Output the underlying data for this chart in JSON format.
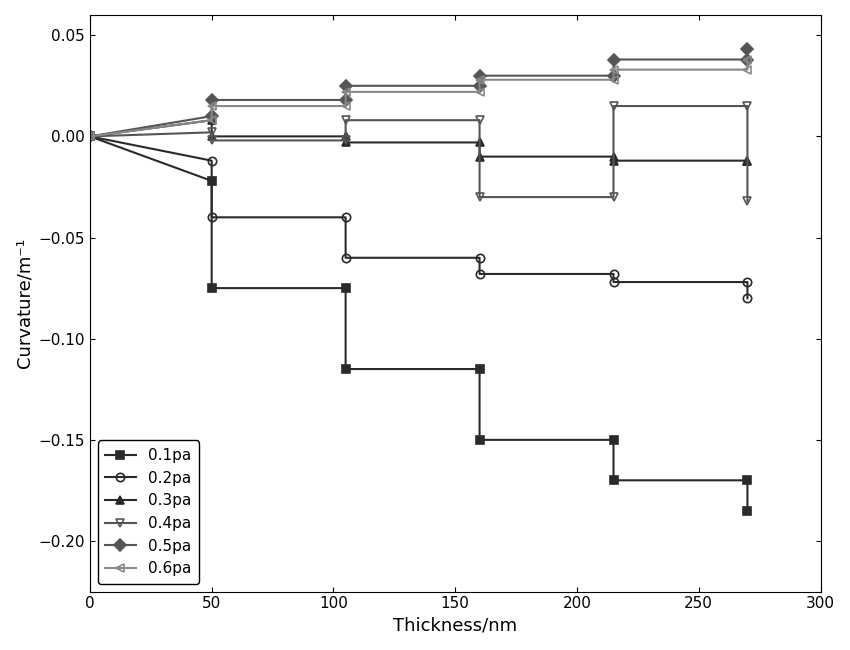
{
  "xlabel": "Thickness/nm",
  "ylabel": "Curvature/m⁻¹",
  "xlim": [
    0,
    300
  ],
  "ylim": [
    -0.225,
    0.06
  ],
  "yticks": [
    0.05,
    0.0,
    -0.05,
    -0.1,
    -0.15,
    -0.2
  ],
  "xticks": [
    0,
    50,
    100,
    150,
    200,
    250,
    300
  ],
  "series": [
    {
      "label": "0.1pa",
      "color": "#2a2a2a",
      "marker": "s",
      "fillstyle": "full",
      "x": [
        0,
        50,
        50,
        105,
        105,
        160,
        160,
        215,
        215,
        270,
        270
      ],
      "y": [
        0.0,
        -0.022,
        -0.075,
        -0.075,
        -0.115,
        -0.115,
        -0.15,
        -0.15,
        -0.17,
        -0.17,
        -0.185
      ]
    },
    {
      "label": "0.2pa",
      "color": "#2a2a2a",
      "marker": "o",
      "fillstyle": "none",
      "x": [
        0,
        50,
        50,
        105,
        105,
        160,
        160,
        215,
        215,
        270,
        270
      ],
      "y": [
        0.0,
        -0.012,
        -0.04,
        -0.04,
        -0.06,
        -0.06,
        -0.068,
        -0.068,
        -0.072,
        -0.072,
        -0.08
      ]
    },
    {
      "label": "0.3pa",
      "color": "#2a2a2a",
      "marker": "^",
      "fillstyle": "full",
      "x": [
        0,
        50,
        50,
        105,
        105,
        160,
        160,
        215,
        215,
        270,
        270
      ],
      "y": [
        0.0,
        0.008,
        0.0,
        0.0,
        -0.003,
        -0.003,
        -0.01,
        -0.01,
        -0.012,
        -0.012,
        -0.012
      ]
    },
    {
      "label": "0.4pa",
      "color": "#555555",
      "marker": "v",
      "fillstyle": "none",
      "x": [
        0,
        50,
        50,
        105,
        105,
        160,
        160,
        215,
        215,
        270,
        270
      ],
      "y": [
        0.0,
        0.002,
        -0.002,
        -0.002,
        0.008,
        0.008,
        -0.03,
        -0.03,
        0.015,
        0.015,
        -0.032
      ]
    },
    {
      "label": "0.5pa",
      "color": "#555555",
      "marker": "D",
      "fillstyle": "full",
      "x": [
        0,
        50,
        50,
        105,
        105,
        160,
        160,
        215,
        215,
        270,
        270
      ],
      "y": [
        0.0,
        0.01,
        0.018,
        0.018,
        0.025,
        0.025,
        0.03,
        0.03,
        0.038,
        0.038,
        0.043
      ]
    },
    {
      "label": "0.6pa",
      "color": "#888888",
      "marker": "<",
      "fillstyle": "none",
      "x": [
        0,
        50,
        50,
        105,
        105,
        160,
        160,
        215,
        215,
        270,
        270
      ],
      "y": [
        0.0,
        0.008,
        0.015,
        0.015,
        0.022,
        0.022,
        0.028,
        0.028,
        0.033,
        0.033,
        0.038
      ]
    }
  ],
  "legend_loc": "lower left",
  "background_color": "#ffffff",
  "linewidth": 1.5,
  "markersize": 6
}
